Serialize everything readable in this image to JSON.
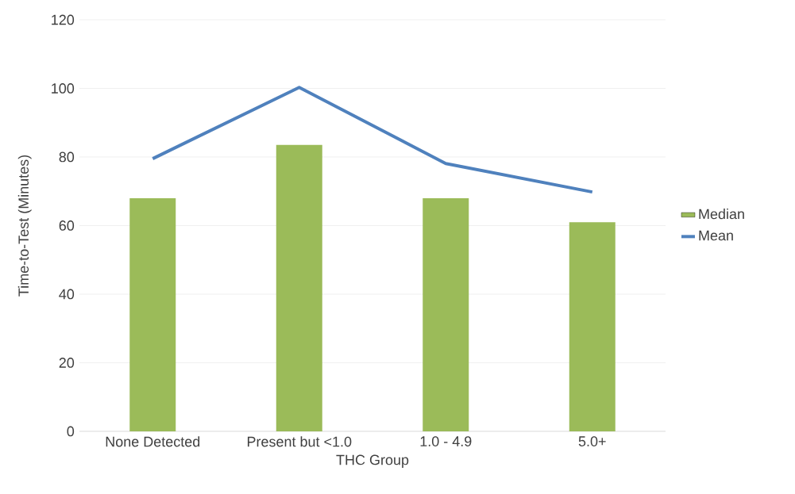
{
  "chart_data": {
    "type": "bar",
    "xlabel": "THC Group",
    "ylabel": "Time-to-Test (Minutes)",
    "categories": [
      "None Detected",
      "Present but <1.0",
      "1.0 - 4.9",
      "5.0+"
    ],
    "series": [
      {
        "name": "Median",
        "color": "#9bbb59",
        "values": [
          68,
          83.5,
          68,
          61
        ]
      },
      {
        "name": "Mean",
        "type": "line",
        "color": "#4f81bd",
        "values": [
          79.5,
          100.3,
          78.1,
          69.8
        ]
      }
    ],
    "ylim": [
      0,
      120
    ],
    "yticks": [
      0,
      20,
      40,
      60,
      80,
      100,
      120
    ],
    "grid": "y",
    "legend": "right"
  }
}
